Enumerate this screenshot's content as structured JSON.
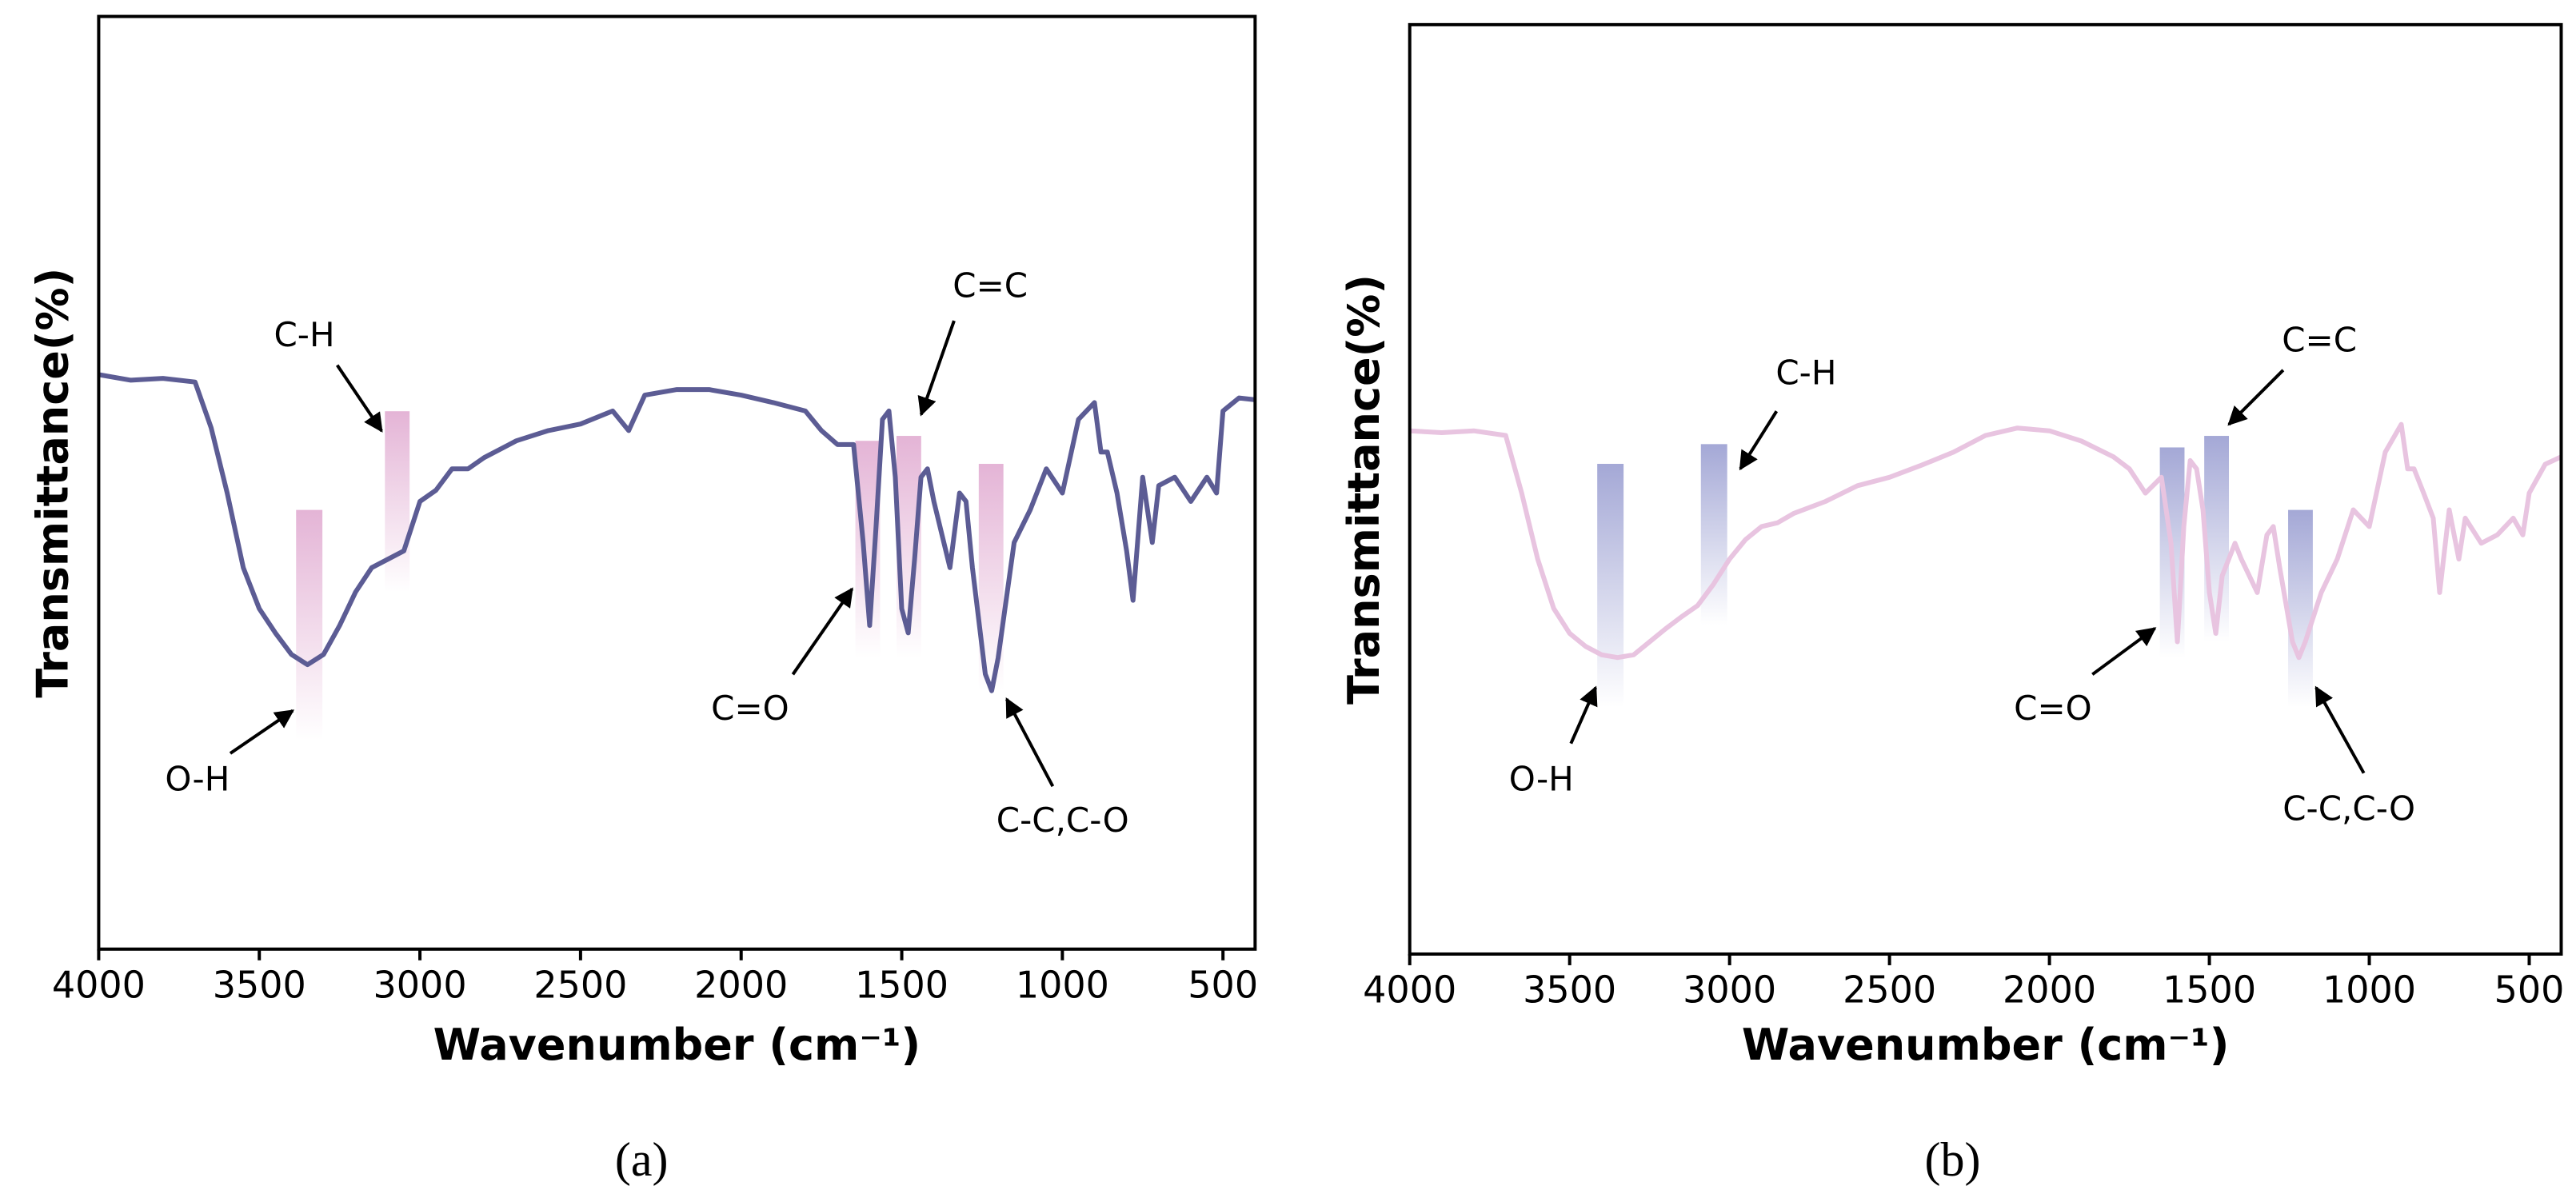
{
  "chart_data": [
    {
      "type": "line",
      "label": "(a)",
      "xlabel": "Wavenumber (cm⁻¹)",
      "ylabel": "Transmittance(%)",
      "xlim": [
        4000,
        400
      ],
      "xticks": [
        4000,
        3500,
        3000,
        2500,
        2000,
        1500,
        1000,
        500
      ],
      "ylim": [
        0,
        100
      ],
      "color": "#5c5c94",
      "highlight_color": "#e4b4d6",
      "annotations": [
        "O-H",
        "C-H",
        "C=O",
        "C=C",
        "C-C,C-O"
      ],
      "x": [
        4000,
        3900,
        3800,
        3700,
        3650,
        3600,
        3550,
        3500,
        3450,
        3400,
        3350,
        3300,
        3250,
        3200,
        3150,
        3100,
        3050,
        3000,
        2950,
        2900,
        2850,
        2800,
        2700,
        2600,
        2500,
        2400,
        2350,
        2300,
        2200,
        2100,
        2000,
        1900,
        1800,
        1750,
        1700,
        1650,
        1620,
        1600,
        1580,
        1560,
        1540,
        1520,
        1500,
        1480,
        1460,
        1440,
        1420,
        1400,
        1350,
        1320,
        1300,
        1280,
        1240,
        1220,
        1200,
        1150,
        1100,
        1050,
        1000,
        950,
        900,
        880,
        860,
        830,
        800,
        780,
        750,
        720,
        700,
        650,
        600,
        550,
        520,
        500,
        450,
        400
      ],
      "values": [
        61.6,
        61.0,
        61.2,
        60.8,
        55.9,
        48.9,
        40.9,
        36.5,
        33.9,
        31.6,
        30.5,
        31.6,
        34.7,
        38.3,
        40.9,
        41.8,
        42.7,
        48.0,
        49.2,
        51.5,
        51.5,
        52.7,
        54.5,
        55.6,
        56.3,
        57.7,
        55.6,
        59.4,
        60.0,
        60.0,
        59.4,
        58.6,
        57.7,
        55.6,
        54.1,
        54.1,
        43.6,
        34.7,
        45.3,
        56.8,
        57.7,
        50.6,
        36.5,
        33.9,
        41.8,
        50.6,
        51.5,
        48.0,
        40.9,
        48.9,
        48.0,
        40.9,
        29.5,
        27.7,
        31.2,
        43.6,
        47.1,
        51.5,
        48.9,
        56.8,
        58.6,
        53.3,
        53.3,
        48.9,
        42.7,
        37.4,
        50.6,
        43.6,
        49.7,
        50.6,
        48.0,
        50.6,
        48.9,
        57.7,
        59.1,
        58.9
      ]
    },
    {
      "type": "line",
      "label": "(b)",
      "xlabel": "Wavenumber (cm⁻¹)",
      "ylabel": "Transmittance(%)",
      "xlim": [
        4000,
        400
      ],
      "xticks": [
        4000,
        3500,
        3000,
        2500,
        2000,
        1500,
        1000,
        500
      ],
      "ylim": [
        0,
        100
      ],
      "color": "#e8c4e0",
      "highlight_color": "#a4a8d6",
      "annotations": [
        "O-H",
        "C-H",
        "C=O",
        "C=C",
        "C-C,C-O"
      ],
      "x": [
        4000,
        3900,
        3800,
        3700,
        3650,
        3600,
        3550,
        3500,
        3450,
        3400,
        3350,
        3300,
        3250,
        3200,
        3150,
        3100,
        3050,
        3000,
        2950,
        2900,
        2850,
        2800,
        2700,
        2600,
        2500,
        2400,
        2300,
        2200,
        2100,
        2000,
        1900,
        1800,
        1750,
        1700,
        1650,
        1620,
        1600,
        1580,
        1560,
        1540,
        1520,
        1500,
        1480,
        1460,
        1420,
        1400,
        1350,
        1320,
        1300,
        1280,
        1240,
        1220,
        1200,
        1150,
        1100,
        1050,
        1000,
        950,
        900,
        880,
        860,
        830,
        800,
        780,
        750,
        720,
        700,
        650,
        600,
        550,
        520,
        500,
        450,
        400
      ],
      "values": [
        56.3,
        56.1,
        56.3,
        55.8,
        49.6,
        42.5,
        37.2,
        34.5,
        33.1,
        32.2,
        31.9,
        32.2,
        33.6,
        35.0,
        36.3,
        37.5,
        39.8,
        42.5,
        44.6,
        46.0,
        46.4,
        47.4,
        48.7,
        50.4,
        51.3,
        52.6,
        54.0,
        55.8,
        56.6,
        56.3,
        55.2,
        53.5,
        52.2,
        49.6,
        51.3,
        44.2,
        33.6,
        46.0,
        53.1,
        52.2,
        47.8,
        38.9,
        34.5,
        40.7,
        44.2,
        42.5,
        38.9,
        45.1,
        46.0,
        41.6,
        33.6,
        31.9,
        33.6,
        38.9,
        42.5,
        47.8,
        46.0,
        54.0,
        57.0,
        52.2,
        52.2,
        49.6,
        46.9,
        38.9,
        47.8,
        42.5,
        46.9,
        44.2,
        45.1,
        46.9,
        45.1,
        49.6,
        52.7,
        53.5
      ]
    }
  ]
}
